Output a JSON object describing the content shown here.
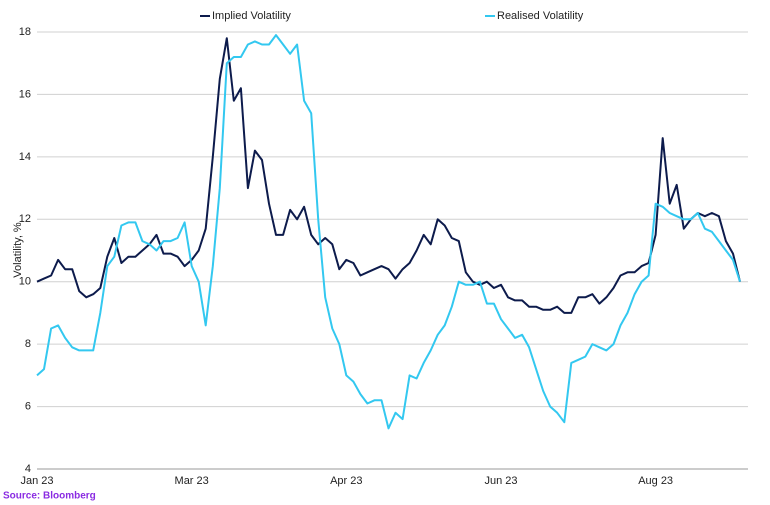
{
  "chart_data": {
    "type": "line",
    "y_label": "Volatility, %",
    "source": "Source: Bloomberg",
    "categories": [
      "Jan 23",
      null,
      null,
      null,
      null,
      null,
      null,
      null,
      null,
      null,
      null,
      null,
      null,
      null,
      null,
      null,
      null,
      null,
      null,
      null,
      null,
      null,
      "Mar 23",
      null,
      null,
      null,
      null,
      null,
      null,
      null,
      null,
      null,
      null,
      null,
      null,
      null,
      null,
      null,
      null,
      null,
      null,
      null,
      null,
      null,
      "Apr 23",
      null,
      null,
      null,
      null,
      null,
      null,
      null,
      null,
      null,
      null,
      null,
      null,
      null,
      null,
      null,
      null,
      null,
      null,
      null,
      null,
      null,
      "Jun 23",
      null,
      null,
      null,
      null,
      null,
      null,
      null,
      null,
      null,
      null,
      null,
      null,
      null,
      null,
      null,
      null,
      null,
      null,
      null,
      null,
      null,
      "Aug 23",
      null,
      null,
      null,
      null,
      null,
      null,
      null,
      null,
      null,
      null,
      null,
      null
    ],
    "series": [
      {
        "name": "Implied Volatility",
        "color": "#0d1b4c",
        "values": [
          10.0,
          10.1,
          10.2,
          10.7,
          10.4,
          10.4,
          9.7,
          9.5,
          9.6,
          9.8,
          10.8,
          11.4,
          10.6,
          10.8,
          10.8,
          11.0,
          11.2,
          11.5,
          10.9,
          10.9,
          10.8,
          10.5,
          10.7,
          11.0,
          11.7,
          14.0,
          16.5,
          17.8,
          15.8,
          16.2,
          13.0,
          14.2,
          13.9,
          12.5,
          11.5,
          11.5,
          12.3,
          12.0,
          12.4,
          11.5,
          11.2,
          11.4,
          11.2,
          10.4,
          10.7,
          10.6,
          10.2,
          10.3,
          10.4,
          10.5,
          10.4,
          10.1,
          10.4,
          10.6,
          11.0,
          11.5,
          11.2,
          12.0,
          11.8,
          11.4,
          11.3,
          10.3,
          10.0,
          9.9,
          10.0,
          9.8,
          9.9,
          9.5,
          9.4,
          9.4,
          9.2,
          9.2,
          9.1,
          9.1,
          9.2,
          9.0,
          9.0,
          9.5,
          9.5,
          9.6,
          9.3,
          9.5,
          9.8,
          10.2,
          10.3,
          10.3,
          10.5,
          10.6,
          11.5,
          14.6,
          12.5,
          13.1,
          11.7,
          12.0,
          12.2,
          12.1,
          12.2,
          12.1,
          11.3,
          10.9,
          10.0
        ]
      },
      {
        "name": "Realised Volatility",
        "color": "#33c8f0",
        "values": [
          7.0,
          7.2,
          8.5,
          8.6,
          8.2,
          7.9,
          7.8,
          7.8,
          7.8,
          9.0,
          10.5,
          10.8,
          11.8,
          11.9,
          11.9,
          11.3,
          11.2,
          11.0,
          11.3,
          11.3,
          11.4,
          11.9,
          10.5,
          10.0,
          8.6,
          10.5,
          13.0,
          17.0,
          17.2,
          17.2,
          17.6,
          17.7,
          17.6,
          17.6,
          17.9,
          17.6,
          17.3,
          17.6,
          15.8,
          15.4,
          12.0,
          9.5,
          8.5,
          8.0,
          7.0,
          6.8,
          6.4,
          6.1,
          6.2,
          6.2,
          5.3,
          5.8,
          5.6,
          7.0,
          6.9,
          7.4,
          7.8,
          8.3,
          8.6,
          9.2,
          10.0,
          9.9,
          9.9,
          10.0,
          9.3,
          9.3,
          8.8,
          8.5,
          8.2,
          8.3,
          7.9,
          7.2,
          6.5,
          6.0,
          5.8,
          5.5,
          7.4,
          7.5,
          7.6,
          8.0,
          7.9,
          7.8,
          8.0,
          8.6,
          9.0,
          9.6,
          10.0,
          10.2,
          12.5,
          12.4,
          12.2,
          12.1,
          12.0,
          12.0,
          12.2,
          11.7,
          11.6,
          11.3,
          11.0,
          10.7,
          10.0
        ]
      }
    ],
    "ylim": [
      4,
      18
    ],
    "yticks": [
      4,
      6,
      8,
      10,
      12,
      14,
      16,
      18
    ],
    "grid": true
  }
}
